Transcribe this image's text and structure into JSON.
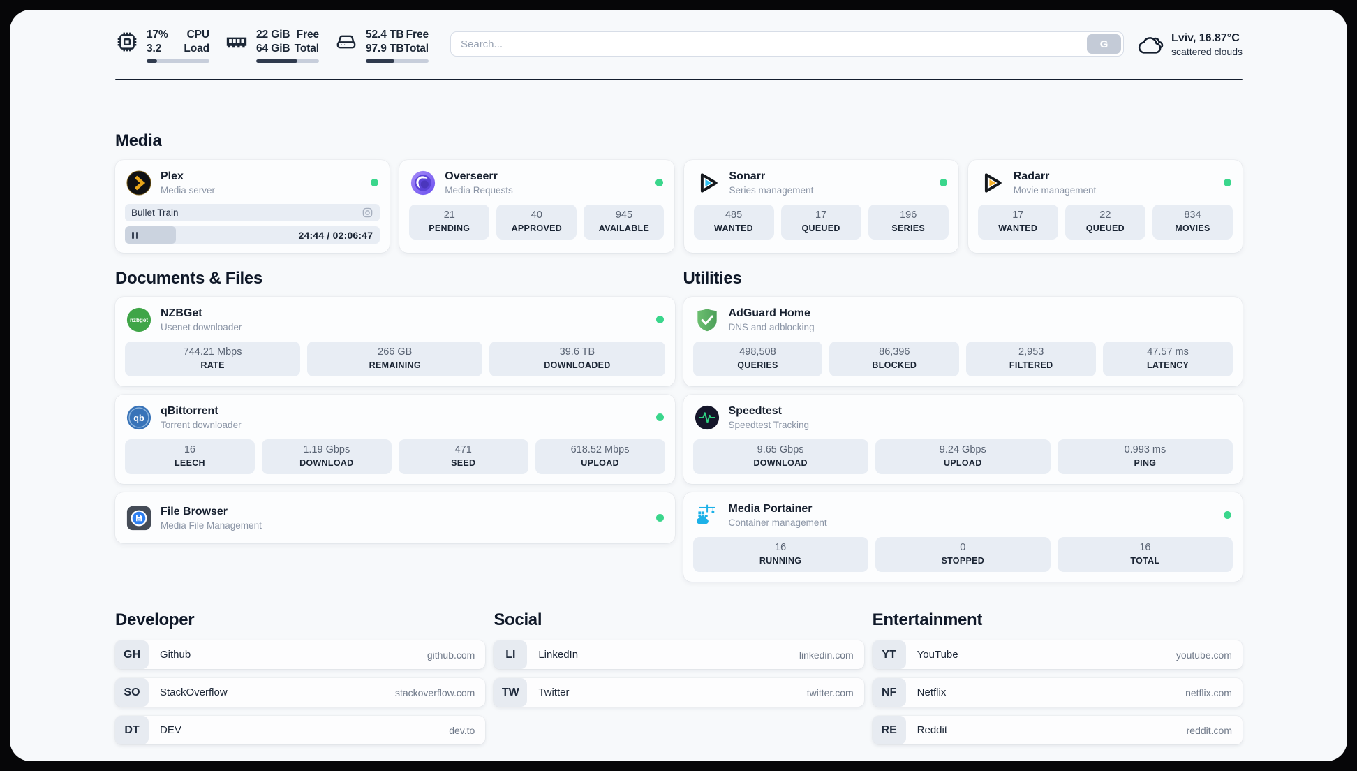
{
  "header": {
    "cpu": {
      "icon": "cpu-chip-icon",
      "value_top": "17%",
      "value_bottom": "3.2",
      "label_top": "CPU",
      "label_bottom": "Load",
      "bar_pct": 17
    },
    "memory": {
      "icon": "ram-icon",
      "value_top": "22 GiB",
      "value_bottom": "64 GiB",
      "label_top": "Free",
      "label_bottom": "Total",
      "bar_pct": 66
    },
    "disk": {
      "icon": "hard-drive-icon",
      "value_top": "52.4 TB",
      "value_bottom": "97.9 TB",
      "label_top": "Free",
      "label_bottom": "Total",
      "bar_pct": 46
    },
    "search": {
      "placeholder": "Search...",
      "button_label": "G"
    },
    "weather": {
      "icon": "cloud-icon",
      "location_temp": "Lviv, 16.87°C",
      "condition": "scattered clouds"
    }
  },
  "colors": {
    "status_online": "#3ad68c",
    "accent_navy": "#1a2433",
    "tile_bg": "#e8edf4"
  },
  "sections": {
    "media": "Media",
    "documents": "Documents & Files",
    "utilities": "Utilities"
  },
  "apps": {
    "plex": {
      "icon": "plex-icon",
      "title": "Plex",
      "subtitle": "Media server",
      "online": true,
      "now_playing": "Bullet Train",
      "time_display": "24:44 / 02:06:47",
      "progress_pct": 20
    },
    "overseerr": {
      "icon": "overseerr-icon",
      "title": "Overseerr",
      "subtitle": "Media Requests",
      "online": true,
      "stats": [
        {
          "value": "21",
          "label": "PENDING"
        },
        {
          "value": "40",
          "label": "APPROVED"
        },
        {
          "value": "945",
          "label": "AVAILABLE"
        }
      ]
    },
    "sonarr": {
      "icon": "sonarr-icon",
      "title": "Sonarr",
      "subtitle": "Series management",
      "online": true,
      "stats": [
        {
          "value": "485",
          "label": "WANTED"
        },
        {
          "value": "17",
          "label": "QUEUED"
        },
        {
          "value": "196",
          "label": "SERIES"
        }
      ]
    },
    "radarr": {
      "icon": "radarr-icon",
      "title": "Radarr",
      "subtitle": "Movie management",
      "online": true,
      "stats": [
        {
          "value": "17",
          "label": "WANTED"
        },
        {
          "value": "22",
          "label": "QUEUED"
        },
        {
          "value": "834",
          "label": "MOVIES"
        }
      ]
    },
    "nzbget": {
      "icon": "nzbget-icon",
      "title": "NZBGet",
      "subtitle": "Usenet downloader",
      "online": true,
      "stats": [
        {
          "value": "744.21 Mbps",
          "label": "RATE"
        },
        {
          "value": "266 GB",
          "label": "REMAINING"
        },
        {
          "value": "39.6 TB",
          "label": "DOWNLOADED"
        }
      ]
    },
    "qbittorrent": {
      "icon": "qbittorrent-icon",
      "title": "qBittorrent",
      "subtitle": "Torrent downloader",
      "online": true,
      "stats": [
        {
          "value": "16",
          "label": "LEECH"
        },
        {
          "value": "1.19 Gbps",
          "label": "DOWNLOAD"
        },
        {
          "value": "471",
          "label": "SEED"
        },
        {
          "value": "618.52 Mbps",
          "label": "UPLOAD"
        }
      ]
    },
    "filebrowser": {
      "icon": "file-browser-icon",
      "title": "File Browser",
      "subtitle": "Media File Management",
      "online": true
    },
    "adguard": {
      "icon": "adguard-shield-icon",
      "title": "AdGuard Home",
      "subtitle": "DNS and adblocking",
      "stats": [
        {
          "value": "498,508",
          "label": "QUERIES"
        },
        {
          "value": "86,396",
          "label": "BLOCKED"
        },
        {
          "value": "2,953",
          "label": "FILTERED"
        },
        {
          "value": "47.57 ms",
          "label": "LATENCY"
        }
      ]
    },
    "speedtest": {
      "icon": "speedtest-pulse-icon",
      "title": "Speedtest",
      "subtitle": "Speedtest Tracking",
      "stats": [
        {
          "value": "9.65 Gbps",
          "label": "DOWNLOAD"
        },
        {
          "value": "9.24 Gbps",
          "label": "UPLOAD"
        },
        {
          "value": "0.993 ms",
          "label": "PING"
        }
      ]
    },
    "portainer": {
      "icon": "portainer-crane-icon",
      "title": "Media Portainer",
      "subtitle": "Container management",
      "online": true,
      "stats": [
        {
          "value": "16",
          "label": "RUNNING"
        },
        {
          "value": "0",
          "label": "STOPPED"
        },
        {
          "value": "16",
          "label": "TOTAL"
        }
      ]
    }
  },
  "links": {
    "developer": {
      "heading": "Developer",
      "items": [
        {
          "tag": "GH",
          "name": "Github",
          "url": "github.com"
        },
        {
          "tag": "SO",
          "name": "StackOverflow",
          "url": "stackoverflow.com"
        },
        {
          "tag": "DT",
          "name": "DEV",
          "url": "dev.to"
        }
      ]
    },
    "social": {
      "heading": "Social",
      "items": [
        {
          "tag": "LI",
          "name": "LinkedIn",
          "url": "linkedin.com"
        },
        {
          "tag": "TW",
          "name": "Twitter",
          "url": "twitter.com"
        }
      ]
    },
    "entertainment": {
      "heading": "Entertainment",
      "items": [
        {
          "tag": "YT",
          "name": "YouTube",
          "url": "youtube.com"
        },
        {
          "tag": "NF",
          "name": "Netflix",
          "url": "netflix.com"
        },
        {
          "tag": "RE",
          "name": "Reddit",
          "url": "reddit.com"
        }
      ]
    }
  }
}
